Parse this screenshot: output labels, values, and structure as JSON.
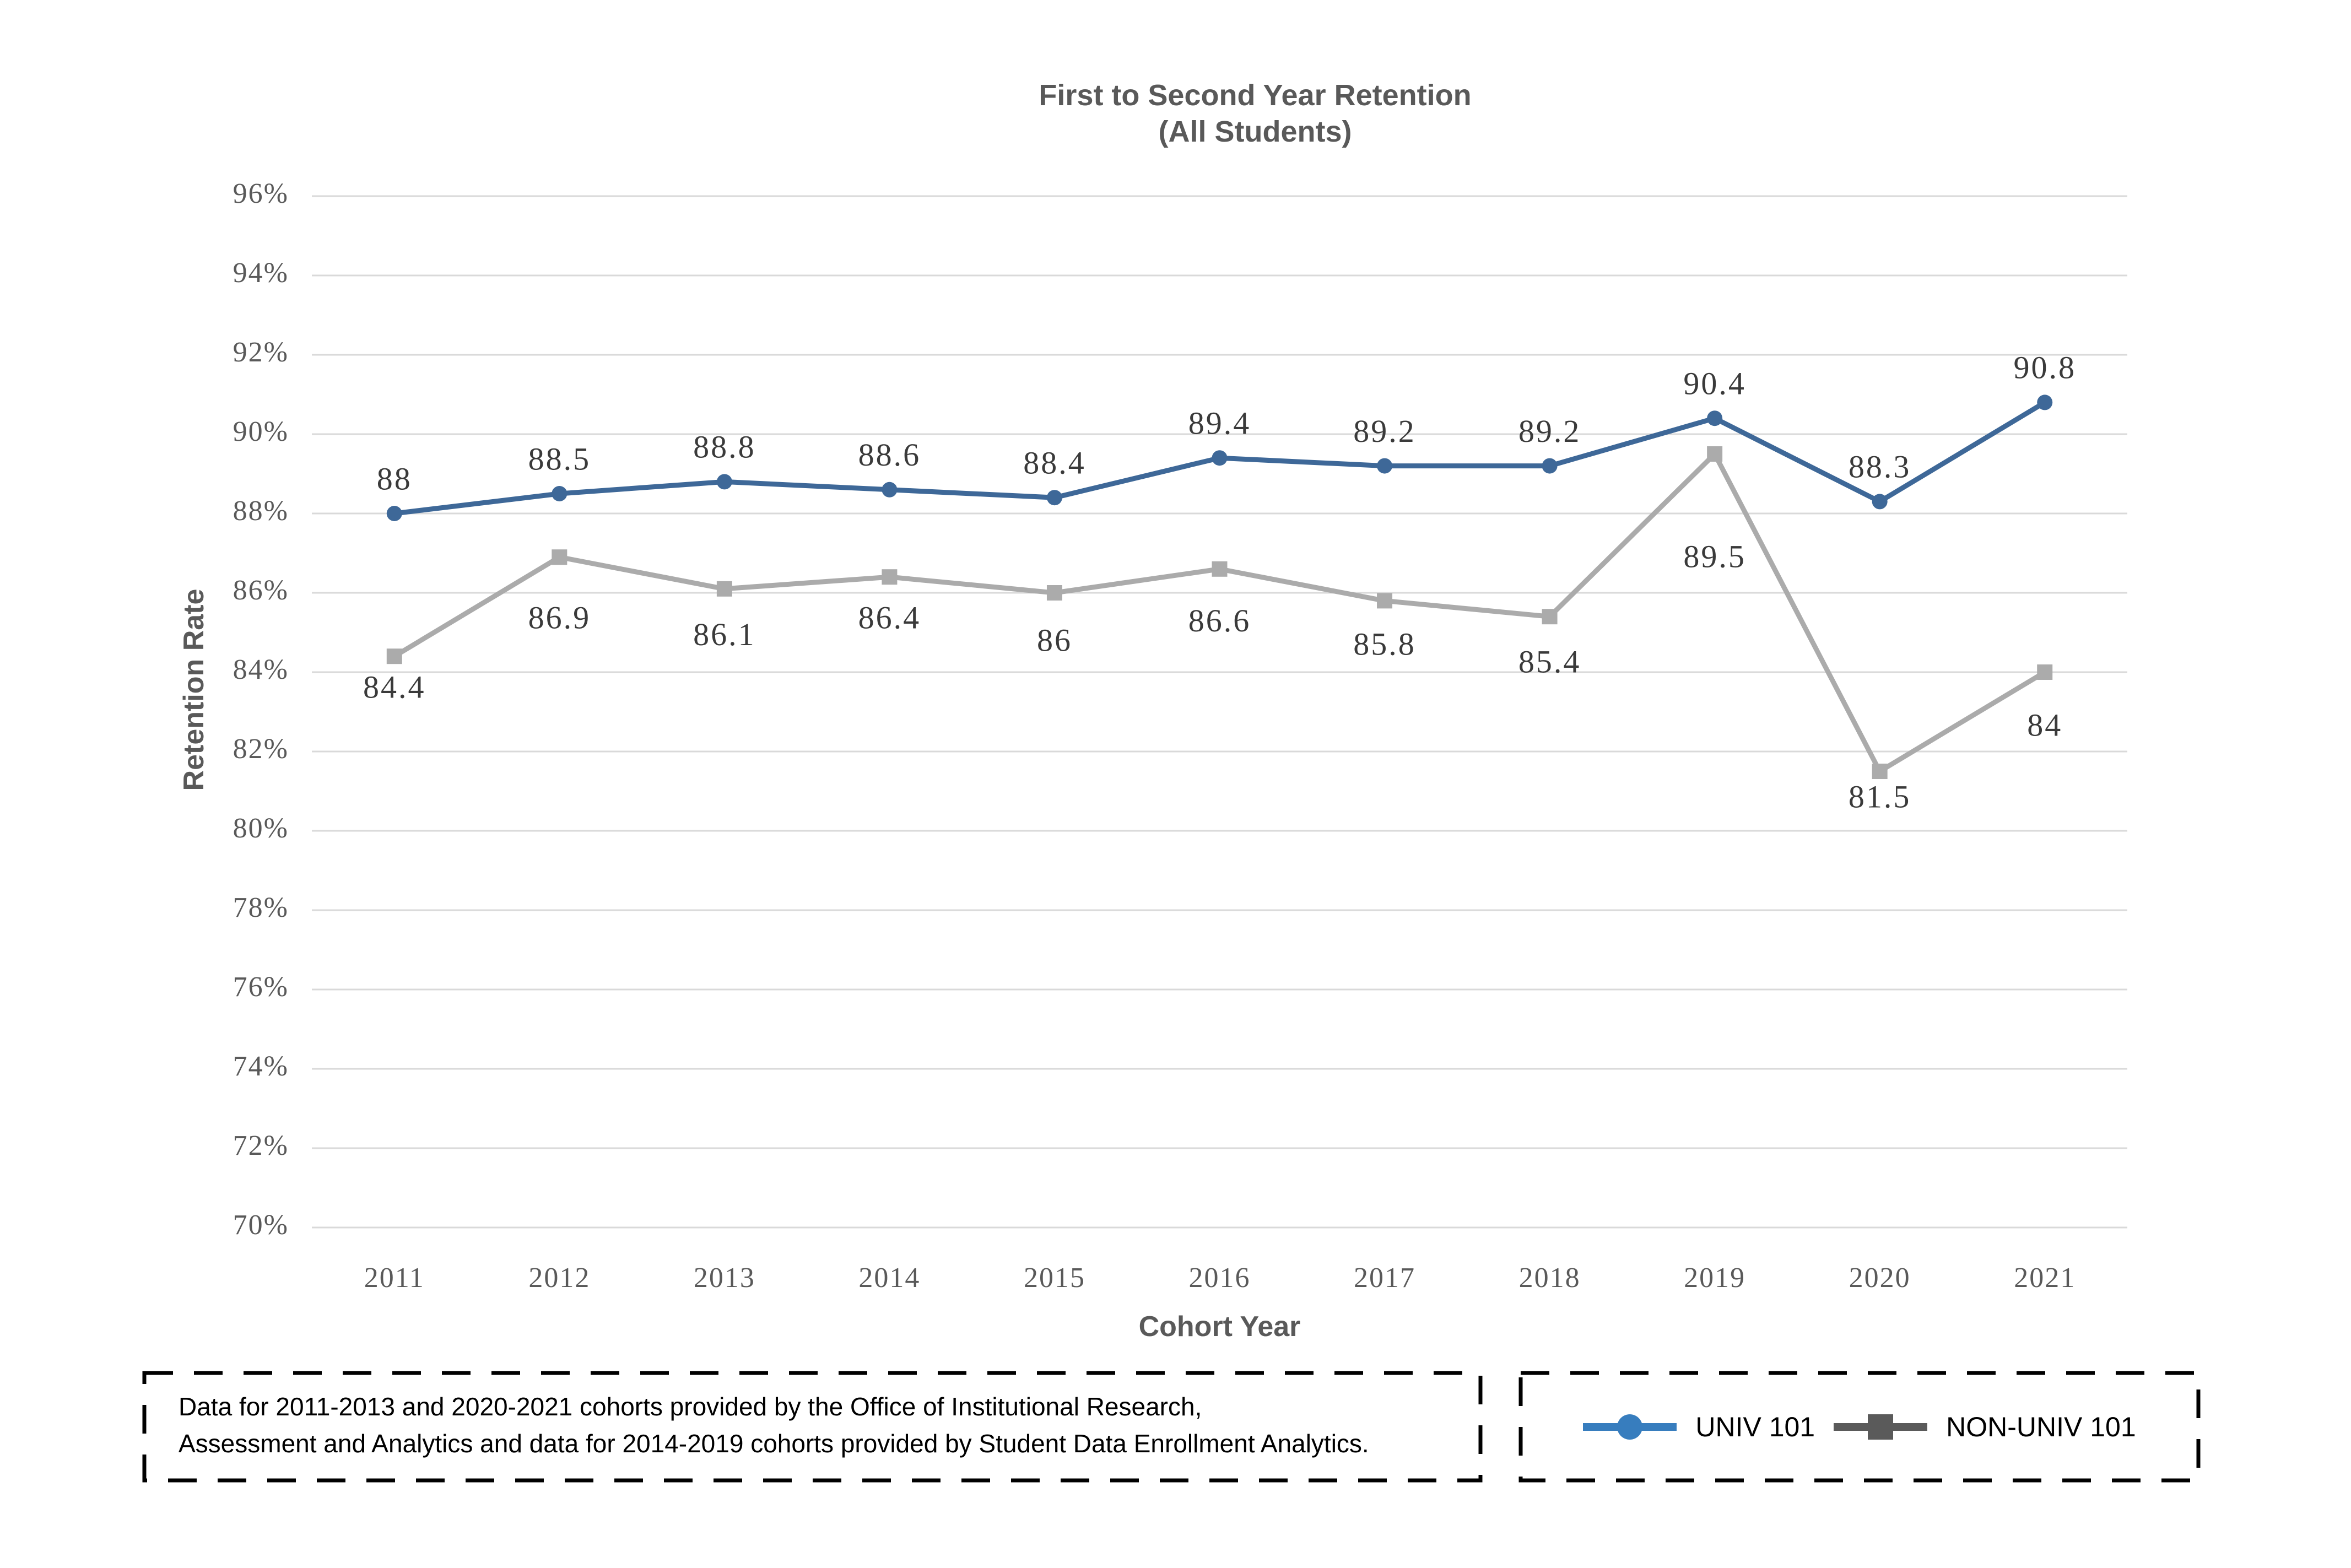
{
  "title": {
    "line1": "First to Second Year Retention",
    "line2": "(All Students)"
  },
  "chart_data": {
    "type": "line",
    "title": "First to Second Year Retention (All Students)",
    "xlabel": "Cohort Year",
    "ylabel": "Retention Rate",
    "categories": [
      "2011",
      "2012",
      "2013",
      "2014",
      "2015",
      "2016",
      "2017",
      "2018",
      "2019",
      "2020",
      "2021"
    ],
    "series": [
      {
        "name": "UNIV 101",
        "color": "#3E6898",
        "marker": "circle",
        "values": [
          88,
          88.5,
          88.8,
          88.6,
          88.4,
          89.4,
          89.2,
          89.2,
          90.4,
          88.3,
          90.8
        ],
        "labels": [
          "88",
          "88.5",
          "88.8",
          "88.6",
          "88.4",
          "89.4",
          "89.2",
          "89.2",
          "90.4",
          "88.3",
          "90.8"
        ],
        "label_dy": [
          -64,
          -64,
          -64,
          -64,
          -64,
          -64,
          -64,
          -64,
          -64,
          -64,
          -64
        ]
      },
      {
        "name": "NON-UNIV 101",
        "color": "#ABABAB",
        "marker": "square",
        "values": [
          84.4,
          86.9,
          86.1,
          86.4,
          86,
          86.6,
          85.8,
          85.4,
          89.5,
          81.5,
          84
        ],
        "labels": [
          "84.4",
          "86.9",
          "86.1",
          "86.4",
          "86",
          "86.6",
          "85.8",
          "85.4",
          "89.5",
          "81.5",
          "84"
        ],
        "label_dy": [
          55,
          109,
          82,
          73,
          85,
          93,
          78,
          81,
          185,
          45,
          95
        ]
      }
    ],
    "ylim": [
      70,
      96
    ],
    "ytick_step": 2,
    "ytick_suffix": "%",
    "grid": true,
    "gridline_color": "#D9D9D9",
    "axis_text_color": "#595959",
    "data_label_color": "#3A3A3A",
    "legend_position": "bottom-right"
  },
  "note": {
    "lines": [
      "Data for 2011-2013 and 2020-2021 cohorts provided by the Office of Institutional Research,",
      "Assessment and Analytics and data for 2014-2019 cohorts provided by Student Data Enrollment Analytics."
    ]
  },
  "legend": {
    "items": [
      {
        "label": "UNIV 101",
        "color": "#377DBE",
        "marker": "circle"
      },
      {
        "label": "NON-UNIV 101",
        "color": "#5A5A5A",
        "marker": "square"
      }
    ]
  }
}
